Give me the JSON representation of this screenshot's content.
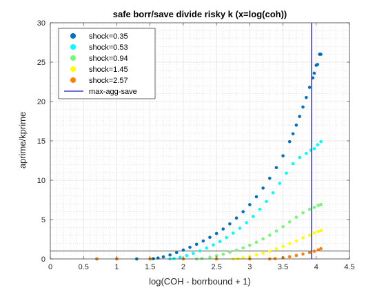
{
  "chart_data": {
    "type": "scatter",
    "title": "safe borr/save divide risky k (x=log(coh))",
    "xlabel": "log(COH - borrbound + 1)",
    "ylabel": "aprime/kprime",
    "xlim": [
      0,
      4.5
    ],
    "ylim": [
      0,
      30
    ],
    "xticks": [
      "0",
      "0.5",
      "1",
      "1.5",
      "2",
      "2.5",
      "3",
      "3.5",
      "4",
      "4.5"
    ],
    "yticks": [
      "0",
      "5",
      "10",
      "15",
      "20",
      "25",
      "30"
    ],
    "grid": true,
    "minor_grid": true,
    "legend_position": "top-left",
    "series": [
      {
        "name": "shock=0.35",
        "color": "#0072BD",
        "points": [
          [
            0.7,
            0
          ],
          [
            1.0,
            0
          ],
          [
            1.3,
            0
          ],
          [
            1.5,
            0
          ],
          [
            1.55,
            0.03
          ],
          [
            1.62,
            0.12
          ],
          [
            1.7,
            0.26
          ],
          [
            1.8,
            0.5
          ],
          [
            1.9,
            0.8
          ],
          [
            2.0,
            1.12
          ],
          [
            2.1,
            1.48
          ],
          [
            2.2,
            1.86
          ],
          [
            2.3,
            2.28
          ],
          [
            2.4,
            2.74
          ],
          [
            2.5,
            3.24
          ],
          [
            2.6,
            3.8
          ],
          [
            2.7,
            4.45
          ],
          [
            2.8,
            5.2
          ],
          [
            2.9,
            6.0
          ],
          [
            3.0,
            6.9
          ],
          [
            3.1,
            7.9
          ],
          [
            3.2,
            9.0
          ],
          [
            3.3,
            10.25
          ],
          [
            3.4,
            11.6
          ],
          [
            3.5,
            13.1
          ],
          [
            3.6,
            14.9
          ],
          [
            3.65,
            15.9
          ],
          [
            3.7,
            17.0
          ],
          [
            3.75,
            18.1
          ],
          [
            3.8,
            19.3
          ],
          [
            3.85,
            20.5
          ],
          [
            3.9,
            21.8
          ],
          [
            3.95,
            23.0
          ],
          [
            3.97,
            23.6
          ],
          [
            4.0,
            24.6
          ],
          [
            4.02,
            24.7
          ],
          [
            4.05,
            26.0
          ],
          [
            4.07,
            26.0
          ]
        ]
      },
      {
        "name": "shock=0.53",
        "color": "#00FFFF",
        "points": [
          [
            1.0,
            0
          ],
          [
            1.5,
            0
          ],
          [
            1.8,
            0
          ],
          [
            1.86,
            0.05
          ],
          [
            1.95,
            0.2
          ],
          [
            2.05,
            0.42
          ],
          [
            2.15,
            0.7
          ],
          [
            2.25,
            1.02
          ],
          [
            2.35,
            1.38
          ],
          [
            2.45,
            1.78
          ],
          [
            2.55,
            2.22
          ],
          [
            2.65,
            2.72
          ],
          [
            2.75,
            3.28
          ],
          [
            2.85,
            3.9
          ],
          [
            2.95,
            4.6
          ],
          [
            3.05,
            5.4
          ],
          [
            3.15,
            6.3
          ],
          [
            3.25,
            7.3
          ],
          [
            3.35,
            8.4
          ],
          [
            3.45,
            9.6
          ],
          [
            3.55,
            10.9
          ],
          [
            3.65,
            12.1
          ],
          [
            3.75,
            12.9
          ],
          [
            3.85,
            13.4
          ],
          [
            3.92,
            13.8
          ],
          [
            3.97,
            14.0
          ],
          [
            4.02,
            14.5
          ],
          [
            4.07,
            14.9
          ]
        ]
      },
      {
        "name": "shock=0.94",
        "color": "#77F777",
        "points": [
          [
            1.0,
            0
          ],
          [
            1.5,
            0
          ],
          [
            2.0,
            0
          ],
          [
            2.2,
            0
          ],
          [
            2.28,
            0.05
          ],
          [
            2.4,
            0.22
          ],
          [
            2.5,
            0.4
          ],
          [
            2.6,
            0.6
          ],
          [
            2.7,
            0.84
          ],
          [
            2.8,
            1.1
          ],
          [
            2.9,
            1.4
          ],
          [
            3.0,
            1.74
          ],
          [
            3.1,
            2.12
          ],
          [
            3.2,
            2.55
          ],
          [
            3.3,
            3.02
          ],
          [
            3.4,
            3.54
          ],
          [
            3.5,
            4.1
          ],
          [
            3.6,
            4.7
          ],
          [
            3.7,
            5.3
          ],
          [
            3.8,
            5.85
          ],
          [
            3.9,
            6.3
          ],
          [
            3.97,
            6.55
          ],
          [
            4.03,
            6.8
          ],
          [
            4.07,
            6.9
          ]
        ]
      },
      {
        "name": "shock=1.45",
        "color": "#FFFF00",
        "points": [
          [
            1.0,
            0
          ],
          [
            1.5,
            0
          ],
          [
            2.0,
            0
          ],
          [
            2.5,
            0
          ],
          [
            2.75,
            0
          ],
          [
            2.82,
            0.05
          ],
          [
            2.9,
            0.15
          ],
          [
            3.0,
            0.3
          ],
          [
            3.1,
            0.5
          ],
          [
            3.2,
            0.72
          ],
          [
            3.3,
            0.98
          ],
          [
            3.4,
            1.28
          ],
          [
            3.5,
            1.6
          ],
          [
            3.6,
            1.95
          ],
          [
            3.7,
            2.3
          ],
          [
            3.8,
            2.68
          ],
          [
            3.9,
            3.0
          ],
          [
            3.97,
            3.3
          ],
          [
            4.03,
            3.5
          ],
          [
            4.07,
            3.6
          ]
        ]
      },
      {
        "name": "shock=2.57",
        "color": "#FF7F00",
        "points": [
          [
            0.7,
            0
          ],
          [
            1.0,
            0
          ],
          [
            1.5,
            0
          ],
          [
            2.0,
            0
          ],
          [
            2.5,
            0
          ],
          [
            3.0,
            0
          ],
          [
            3.3,
            0
          ],
          [
            3.38,
            0.04
          ],
          [
            3.5,
            0.15
          ],
          [
            3.6,
            0.28
          ],
          [
            3.7,
            0.44
          ],
          [
            3.8,
            0.62
          ],
          [
            3.9,
            0.8
          ],
          [
            3.97,
            0.98
          ],
          [
            4.03,
            1.15
          ],
          [
            4.07,
            1.3
          ]
        ]
      }
    ],
    "vertical_line": {
      "name": "max-agg-save",
      "x": 3.93,
      "color": "#4040D0"
    },
    "horizontal_line": {
      "y": 1,
      "color": "#000000"
    }
  }
}
